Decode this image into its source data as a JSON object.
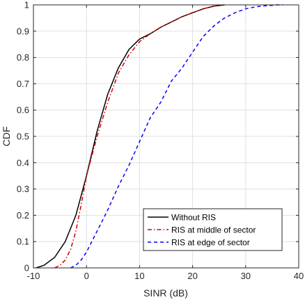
{
  "chart_data": {
    "type": "line",
    "title": "",
    "xlabel": "SINR (dB)",
    "ylabel": "CDF",
    "xlim": [
      -10,
      40
    ],
    "ylim": [
      0,
      1
    ],
    "xticks": [
      "-10",
      "0",
      "10",
      "20",
      "30",
      "40"
    ],
    "yticks": [
      "0",
      "0.1",
      "0.2",
      "0.3",
      "0.4",
      "0.5",
      "0.6",
      "0.7",
      "0.8",
      "0.9",
      "1"
    ],
    "grid": true,
    "legend_position": "bottom-right",
    "series": [
      {
        "name": "Without RIS",
        "color": "#000000",
        "dash": "solid",
        "x": [
          -9.5,
          -8,
          -6,
          -4,
          -2,
          0,
          2,
          4,
          6,
          8,
          10,
          12,
          14,
          16,
          18,
          20,
          22,
          24,
          26
        ],
        "y": [
          0,
          0.01,
          0.04,
          0.1,
          0.2,
          0.35,
          0.52,
          0.66,
          0.76,
          0.83,
          0.87,
          0.89,
          0.915,
          0.935,
          0.955,
          0.97,
          0.985,
          0.995,
          1.0
        ]
      },
      {
        "name": "RIS at middle of sector",
        "color": "#d00000",
        "dash": "dash-dot",
        "x": [
          -6,
          -5,
          -4,
          -3,
          -2,
          -1,
          0,
          2,
          4,
          6,
          8,
          10,
          12,
          14,
          16,
          18,
          20,
          22,
          24,
          26
        ],
        "y": [
          0,
          0.01,
          0.03,
          0.07,
          0.14,
          0.24,
          0.35,
          0.5,
          0.63,
          0.74,
          0.81,
          0.86,
          0.89,
          0.915,
          0.935,
          0.955,
          0.97,
          0.985,
          0.995,
          1.0
        ]
      },
      {
        "name": "RIS at edge of sector",
        "color": "#0000ff",
        "dash": "dashed",
        "x": [
          -3,
          -2,
          -1,
          0,
          1,
          2,
          4,
          6,
          8,
          10,
          12,
          14,
          16,
          18,
          20,
          22,
          24,
          26,
          28,
          30,
          32,
          34,
          36,
          37
        ],
        "y": [
          0,
          0.01,
          0.03,
          0.06,
          0.1,
          0.14,
          0.22,
          0.31,
          0.39,
          0.48,
          0.57,
          0.63,
          0.71,
          0.76,
          0.82,
          0.88,
          0.92,
          0.95,
          0.97,
          0.985,
          0.993,
          0.997,
          1.0,
          1.0
        ]
      }
    ]
  }
}
